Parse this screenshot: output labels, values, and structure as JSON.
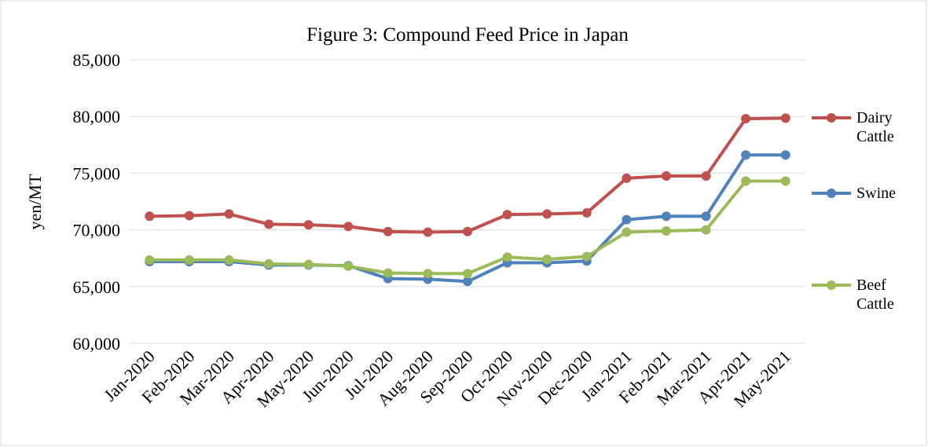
{
  "chart_data": {
    "type": "line",
    "title": "Figure 3: Compound Feed Price in Japan",
    "y_label": "yen/MT",
    "categories": [
      "Jan-2020",
      "Feb-2020",
      "Mar-2020",
      "Apr-2020",
      "May-2020",
      "Jun-2020",
      "Jul-2020",
      "Aug-2020",
      "Sep-2020",
      "Oct-2020",
      "Nov-2020",
      "Dec-2020",
      "Jan-2021",
      "Feb-2021",
      "Mar-2021",
      "Apr-2021",
      "May-2021"
    ],
    "series": [
      {
        "name": "Dairy Cattle",
        "color": "#c0504d",
        "values": [
          71200,
          71250,
          71400,
          70500,
          70450,
          70300,
          69850,
          69800,
          69850,
          71350,
          71400,
          71500,
          74550,
          74750,
          74750,
          79800,
          79850
        ]
      },
      {
        "name": "Swine",
        "color": "#4f81bd",
        "values": [
          67200,
          67200,
          67200,
          66900,
          66900,
          66850,
          65700,
          65650,
          65450,
          67100,
          67100,
          67250,
          70900,
          71200,
          71200,
          76600,
          76600
        ]
      },
      {
        "name": "Beef Cattle",
        "color": "#9bbb59",
        "values": [
          67350,
          67350,
          67350,
          67000,
          66950,
          66800,
          66200,
          66150,
          66150,
          67600,
          67400,
          67650,
          69800,
          69900,
          70000,
          74300,
          74300
        ]
      }
    ],
    "ylim": [
      60000,
      85000
    ],
    "yticks": [
      {
        "value": 60000,
        "label": "60,000"
      },
      {
        "value": 65000,
        "label": "65,000"
      },
      {
        "value": 70000,
        "label": "70,000"
      },
      {
        "value": 75000,
        "label": "75,000"
      },
      {
        "value": 80000,
        "label": "80,000"
      },
      {
        "value": 85000,
        "label": "85,000"
      }
    ],
    "grid": true,
    "legend": "right"
  }
}
